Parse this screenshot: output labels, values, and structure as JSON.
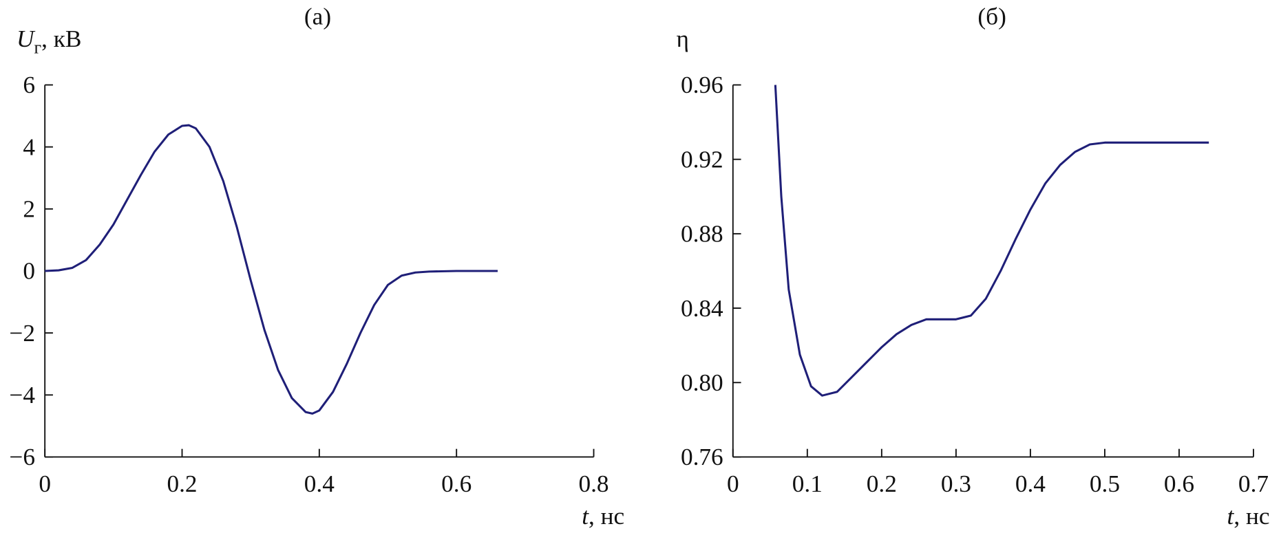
{
  "chart_data": [
    {
      "type": "line",
      "title": "(а)",
      "y_label": {
        "symbol": "U",
        "subscript": "г",
        "unit": ", кВ"
      },
      "x_label": {
        "symbol": "t",
        "unit": ", нс"
      },
      "x": [
        0,
        0.02,
        0.04,
        0.06,
        0.08,
        0.1,
        0.12,
        0.14,
        0.16,
        0.18,
        0.2,
        0.21,
        0.22,
        0.24,
        0.26,
        0.28,
        0.3,
        0.32,
        0.34,
        0.36,
        0.38,
        0.39,
        0.4,
        0.42,
        0.44,
        0.46,
        0.48,
        0.5,
        0.52,
        0.54,
        0.56,
        0.6,
        0.66
      ],
      "series": [
        {
          "color": "#1f1f78",
          "values": [
            0,
            0.02,
            0.1,
            0.35,
            0.85,
            1.5,
            2.3,
            3.1,
            3.85,
            4.4,
            4.68,
            4.7,
            4.6,
            4.0,
            2.9,
            1.4,
            -0.3,
            -1.9,
            -3.2,
            -4.1,
            -4.55,
            -4.6,
            -4.5,
            -3.9,
            -3.0,
            -2.0,
            -1.1,
            -0.45,
            -0.15,
            -0.05,
            -0.02,
            0,
            0
          ]
        }
      ],
      "xlim": [
        0,
        0.8
      ],
      "xticks": [
        0,
        0.2,
        0.4,
        0.6,
        0.8
      ],
      "ylim": [
        -6,
        6
      ],
      "yticks": [
        {
          "value": -6,
          "label": "−6"
        },
        {
          "value": -4,
          "label": "−4"
        },
        {
          "value": -2,
          "label": "−2"
        },
        0,
        2,
        4,
        6
      ]
    },
    {
      "type": "line",
      "title": "(б)",
      "y_label": {
        "symbol": "η"
      },
      "x_label": {
        "symbol": "t",
        "unit": ", нс"
      },
      "x": [
        0.057,
        0.065,
        0.075,
        0.09,
        0.105,
        0.12,
        0.14,
        0.16,
        0.18,
        0.2,
        0.22,
        0.24,
        0.26,
        0.28,
        0.3,
        0.32,
        0.34,
        0.36,
        0.38,
        0.4,
        0.42,
        0.44,
        0.46,
        0.48,
        0.5,
        0.55,
        0.6,
        0.64
      ],
      "series": [
        {
          "color": "#1f1f78",
          "values": [
            0.96,
            0.9,
            0.85,
            0.815,
            0.798,
            0.793,
            0.795,
            0.803,
            0.811,
            0.819,
            0.826,
            0.831,
            0.834,
            0.834,
            0.834,
            0.836,
            0.845,
            0.86,
            0.877,
            0.893,
            0.907,
            0.917,
            0.924,
            0.928,
            0.929,
            0.929,
            0.929,
            0.929
          ]
        }
      ],
      "xlim": [
        0,
        0.7
      ],
      "xticks": [
        0,
        0.1,
        0.2,
        0.3,
        0.4,
        0.5,
        0.6,
        0.7
      ],
      "ylim": [
        0.76,
        0.96
      ],
      "yticks": [
        0.76,
        {
          "value": 0.8,
          "label": "0.80"
        },
        0.84,
        0.88,
        0.92,
        0.96
      ]
    }
  ]
}
